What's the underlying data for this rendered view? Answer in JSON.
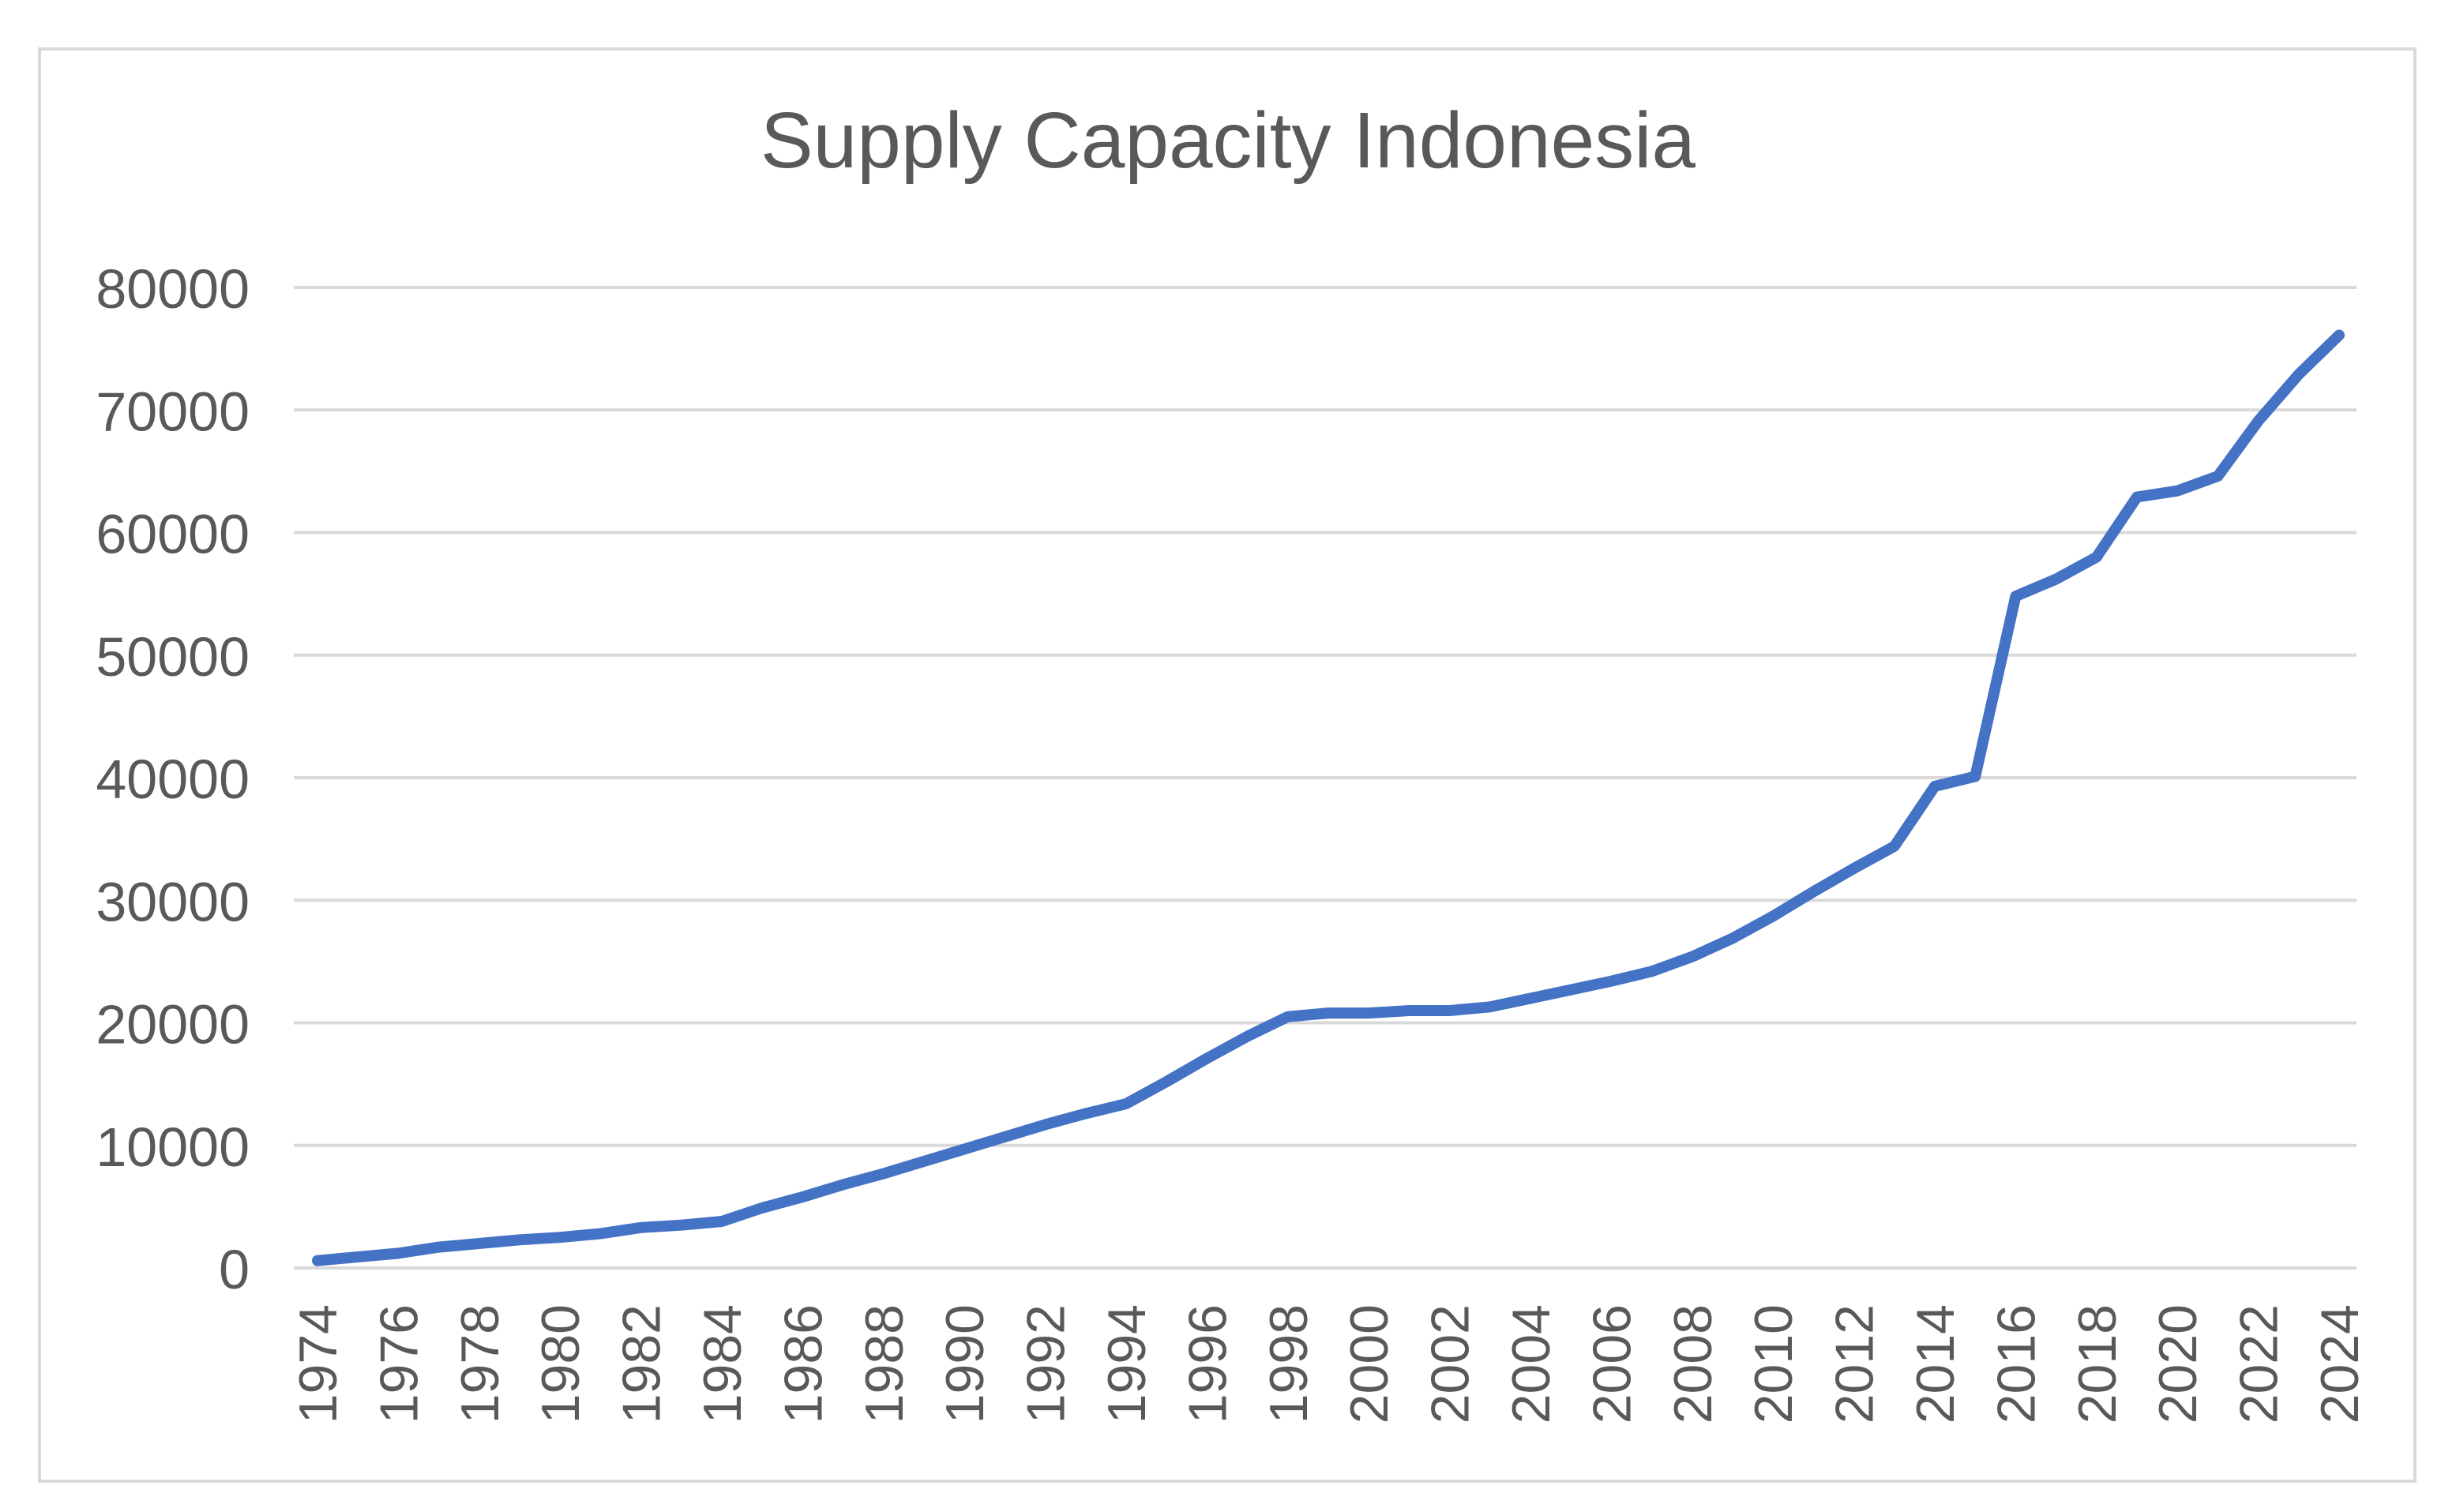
{
  "chart_data": {
    "type": "line",
    "title": "Supply Capacity Indonesia",
    "xlabel": "",
    "ylabel": "",
    "ylim": [
      0,
      80000
    ],
    "y_ticks": [
      0,
      10000,
      20000,
      30000,
      40000,
      50000,
      60000,
      70000,
      80000
    ],
    "x_tick_labels": [
      "1974",
      "1976",
      "1978",
      "1980",
      "1982",
      "1984",
      "1986",
      "1988",
      "1990",
      "1992",
      "1994",
      "1996",
      "1998",
      "2000",
      "2002",
      "2004",
      "2006",
      "2008",
      "2010",
      "2012",
      "2014",
      "2016",
      "2018",
      "2020",
      "2022",
      "2024"
    ],
    "grid": true,
    "legend": "none",
    "line_color": "#4472c4",
    "series": [
      {
        "x": [
          1974,
          1975,
          1976,
          1977,
          1978,
          1979,
          1980,
          1981,
          1982,
          1983,
          1984,
          1985,
          1986,
          1987,
          1988,
          1989,
          1990,
          1991,
          1992,
          1993,
          1994,
          1995,
          1996,
          1997,
          1998,
          1999,
          2000,
          2001,
          2002,
          2003,
          2004,
          2005,
          2006,
          2007,
          2008,
          2009,
          2010,
          2011,
          2012,
          2013,
          2014,
          2015,
          2016,
          2017,
          2018,
          2019,
          2020,
          2021,
          2022,
          2023,
          2024
        ],
        "values": [
          600,
          900,
          1200,
          1700,
          2000,
          2300,
          2500,
          2800,
          3300,
          3500,
          3800,
          4900,
          5800,
          6800,
          7700,
          8700,
          9700,
          10700,
          11700,
          12600,
          13400,
          15200,
          17100,
          18900,
          20500,
          20800,
          20800,
          21000,
          21000,
          21300,
          22000,
          22700,
          23400,
          24200,
          25400,
          26900,
          28700,
          30700,
          32600,
          34400,
          39300,
          40100,
          54800,
          56200,
          58000,
          62900,
          63400,
          64600,
          69100,
          72900,
          76100
        ]
      }
    ]
  }
}
